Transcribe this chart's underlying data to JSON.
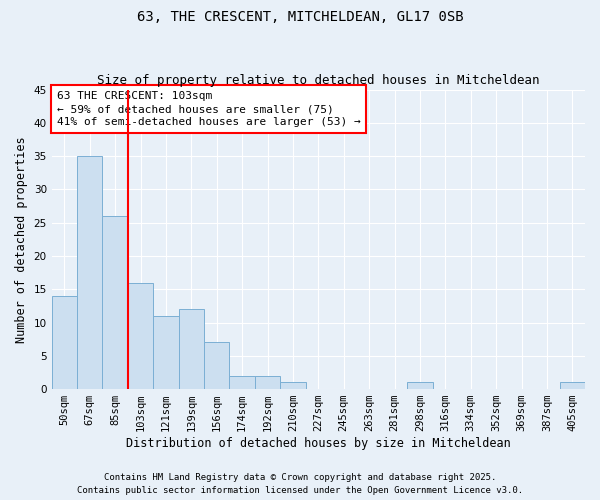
{
  "title": "63, THE CRESCENT, MITCHELDEAN, GL17 0SB",
  "subtitle": "Size of property relative to detached houses in Mitcheldean",
  "xlabel": "Distribution of detached houses by size in Mitcheldean",
  "ylabel": "Number of detached properties",
  "bar_labels": [
    "50sqm",
    "67sqm",
    "85sqm",
    "103sqm",
    "121sqm",
    "139sqm",
    "156sqm",
    "174sqm",
    "192sqm",
    "210sqm",
    "227sqm",
    "245sqm",
    "263sqm",
    "281sqm",
    "298sqm",
    "316sqm",
    "334sqm",
    "352sqm",
    "369sqm",
    "387sqm",
    "405sqm"
  ],
  "bar_values": [
    14,
    35,
    26,
    16,
    11,
    12,
    7,
    2,
    2,
    1,
    0,
    0,
    0,
    0,
    1,
    0,
    0,
    0,
    0,
    0,
    1
  ],
  "bar_color": "#ccdff0",
  "bar_edgecolor": "#7bafd4",
  "vline_x": 2.5,
  "vline_color": "red",
  "annotation_text": "63 THE CRESCENT: 103sqm\n← 59% of detached houses are smaller (75)\n41% of semi-detached houses are larger (53) →",
  "annotation_box_edgecolor": "red",
  "annotation_box_facecolor": "white",
  "ylim": [
    0,
    45
  ],
  "yticks": [
    0,
    5,
    10,
    15,
    20,
    25,
    30,
    35,
    40,
    45
  ],
  "background_color": "#e8f0f8",
  "grid_color": "white",
  "footnote1": "Contains HM Land Registry data © Crown copyright and database right 2025.",
  "footnote2": "Contains public sector information licensed under the Open Government Licence v3.0.",
  "title_fontsize": 10,
  "subtitle_fontsize": 9,
  "axis_label_fontsize": 8.5,
  "tick_fontsize": 7.5,
  "annotation_fontsize": 8,
  "footnote_fontsize": 6.5
}
